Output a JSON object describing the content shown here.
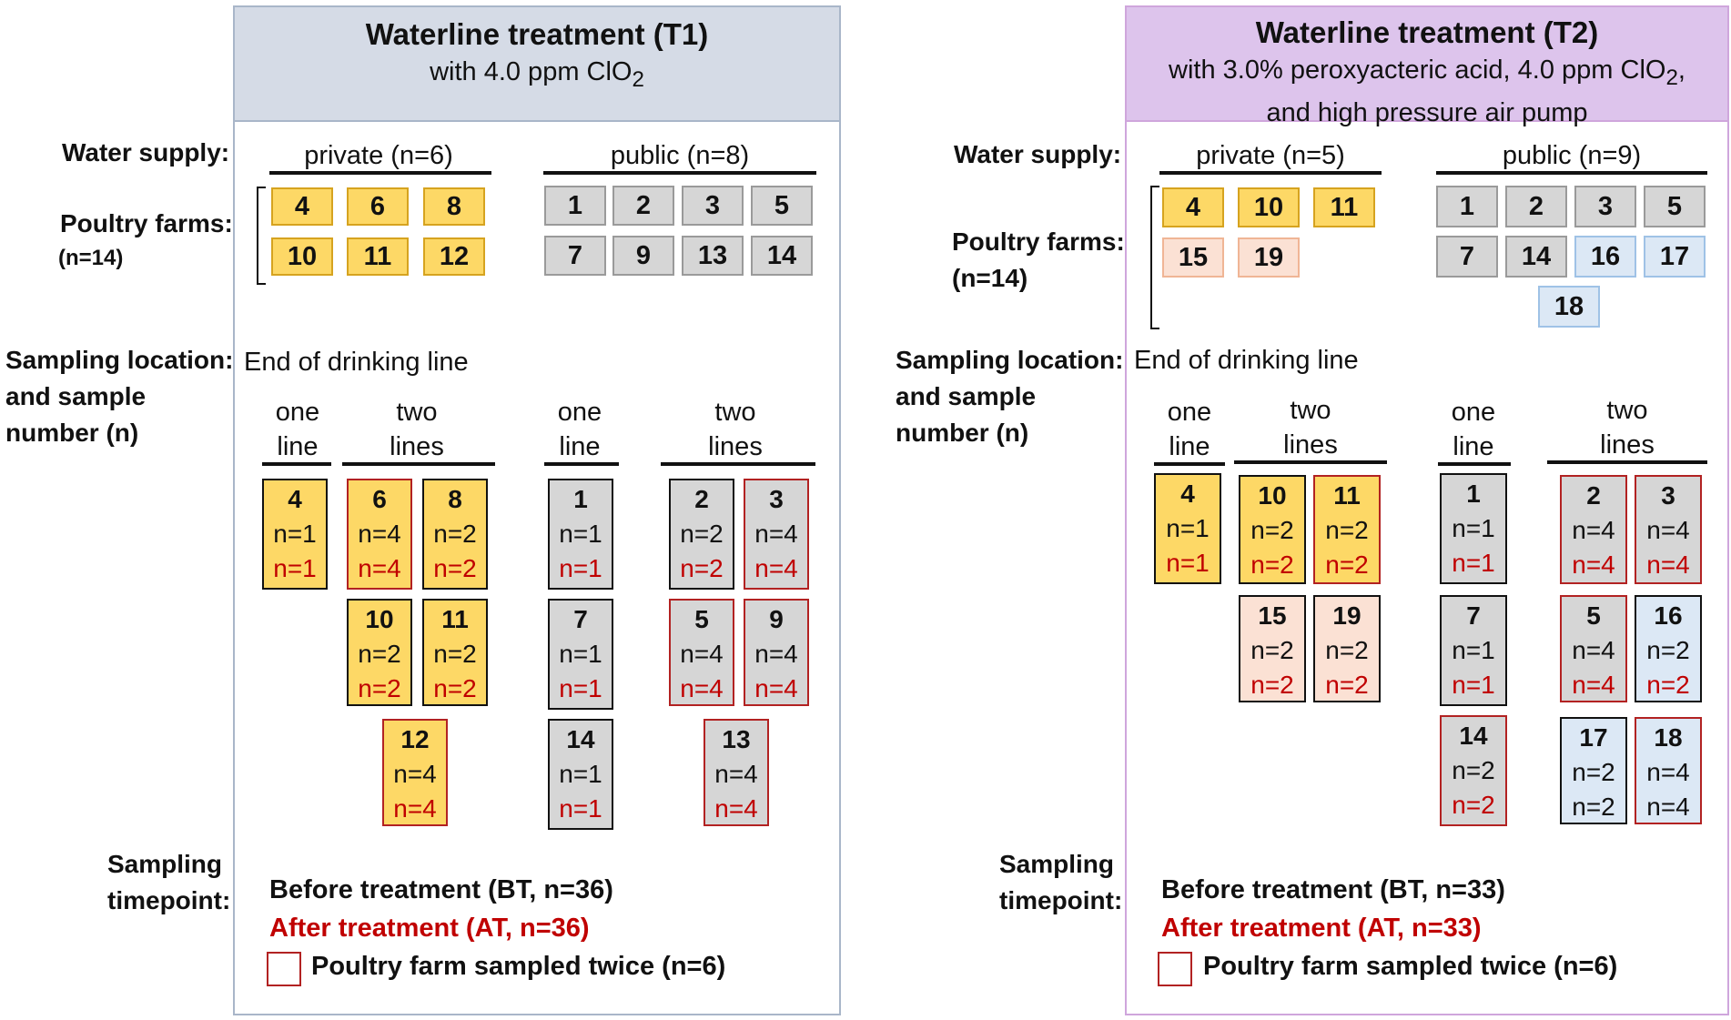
{
  "t1": {
    "title": "Waterline treatment (T1)",
    "subtitle_html": "with 4.0 ppm ClO<sub>2</sub>",
    "water_supply_label": "Water supply:",
    "farms_label": "Poultry farms:",
    "farms_count": "(n=14)",
    "private_header": "private (n=6)",
    "public_header": "public (n=8)",
    "private_farms": [
      "4",
      "6",
      "8",
      "10",
      "11",
      "12"
    ],
    "public_farms": [
      "1",
      "2",
      "3",
      "5",
      "7",
      "9",
      "13",
      "14"
    ],
    "sampling_label": "Sampling location:",
    "sampling_label2": "and sample",
    "sampling_label3": "number (n)",
    "location": "End of drinking line",
    "one_line": [
      "one",
      "line"
    ],
    "two_lines": [
      "two",
      "lines"
    ],
    "samples": [
      {
        "farm": "4",
        "bt": "n=1",
        "at": "n=1"
      },
      {
        "farm": "6",
        "bt": "n=4",
        "at": "n=4"
      },
      {
        "farm": "8",
        "bt": "n=2",
        "at": "n=2"
      },
      {
        "farm": "10",
        "bt": "n=2",
        "at": "n=2"
      },
      {
        "farm": "11",
        "bt": "n=2",
        "at": "n=2"
      },
      {
        "farm": "12",
        "bt": "n=4",
        "at": "n=4"
      },
      {
        "farm": "1",
        "bt": "n=1",
        "at": "n=1"
      },
      {
        "farm": "2",
        "bt": "n=2",
        "at": "n=2"
      },
      {
        "farm": "3",
        "bt": "n=4",
        "at": "n=4"
      },
      {
        "farm": "7",
        "bt": "n=1",
        "at": "n=1"
      },
      {
        "farm": "5",
        "bt": "n=4",
        "at": "n=4"
      },
      {
        "farm": "9",
        "bt": "n=4",
        "at": "n=4"
      },
      {
        "farm": "14",
        "bt": "n=1",
        "at": "n=1"
      },
      {
        "farm": "13",
        "bt": "n=4",
        "at": "n=4"
      }
    ],
    "timepoint_label": [
      "Sampling",
      "timepoint:"
    ],
    "before": "Before treatment (BT, n=36)",
    "after": "After treatment (AT, n=36)",
    "legend": "Poultry farm sampled twice (n=6)"
  },
  "t2": {
    "title": "Waterline treatment (T2)",
    "subtitle_html": "with 3.0% peroxyacteric acid, 4.0 ppm ClO<sub>2</sub>,",
    "subtitle2": "and high pressure air pump",
    "water_supply_label": "Water supply:",
    "farms_label": "Poultry farms:",
    "farms_count": "(n=14)",
    "private_header": "private (n=5)",
    "public_header": "public (n=9)",
    "private_farms": [
      "4",
      "10",
      "11",
      "15",
      "19"
    ],
    "public_farms": [
      "1",
      "2",
      "3",
      "5",
      "7",
      "14",
      "16",
      "17",
      "18"
    ],
    "sampling_label": "Sampling location:",
    "sampling_label2": "and sample",
    "sampling_label3": "number (n)",
    "location": "End of drinking line",
    "one_line": [
      "one",
      "line"
    ],
    "two_lines": [
      "two",
      "lines"
    ],
    "samples": [
      {
        "farm": "4",
        "bt": "n=1",
        "at": "n=1"
      },
      {
        "farm": "10",
        "bt": "n=2",
        "at": "n=2"
      },
      {
        "farm": "11",
        "bt": "n=2",
        "at": "n=2"
      },
      {
        "farm": "15",
        "bt": "n=2",
        "at": "n=2"
      },
      {
        "farm": "19",
        "bt": "n=2",
        "at": "n=2"
      },
      {
        "farm": "1",
        "bt": "n=1",
        "at": "n=1"
      },
      {
        "farm": "2",
        "bt": "n=4",
        "at": "n=4"
      },
      {
        "farm": "3",
        "bt": "n=4",
        "at": "n=4"
      },
      {
        "farm": "7",
        "bt": "n=1",
        "at": "n=1"
      },
      {
        "farm": "5",
        "bt": "n=4",
        "at": "n=4"
      },
      {
        "farm": "16",
        "bt": "n=2",
        "at": "n=2"
      },
      {
        "farm": "14",
        "bt": "n=2",
        "at": "n=2"
      },
      {
        "farm": "17",
        "bt": "n=2",
        "at": "n=2"
      },
      {
        "farm": "18",
        "bt": "n=4",
        "at": "n=4"
      }
    ],
    "timepoint_label": [
      "Sampling",
      "timepoint:"
    ],
    "before": "Before treatment (BT, n=33)",
    "after": "After treatment (AT, n=33)",
    "legend": "Poultry farm sampled twice (n=6)"
  },
  "colors": {
    "private_farm": "#fdd866",
    "public_farm": "#d6d6d6",
    "peach_farm": "#fbe1d4",
    "blue_farm": "#dce8f5",
    "after_treatment": "#c00000",
    "sampled_twice_border": "#b22222"
  }
}
